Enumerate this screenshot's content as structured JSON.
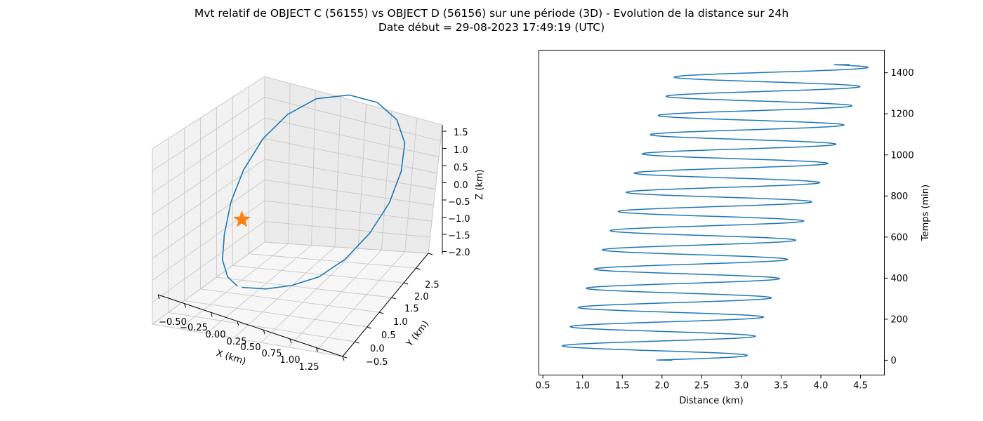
{
  "figure": {
    "title_line1": "Mvt relatif de OBJECT C (56155) vs OBJECT D (56156) sur une période (3D) - Evolution de la distance sur 24h",
    "title_line2": "Date début = 29-08-2023 17:49:19 (UTC)"
  },
  "chart_data": [
    {
      "type": "line",
      "projection": "3d",
      "xlabel": "X (km)",
      "ylabel": "Y (km)",
      "zlabel": "Z (km)",
      "xticks": [
        "−0.50",
        "−0.25",
        "0.00",
        "0.25",
        "0.50",
        "0.75",
        "1.00",
        "1.25"
      ],
      "yticks": [
        "−0.5",
        "0.0",
        "0.5",
        "1.0",
        "1.5",
        "2.0",
        "2.5"
      ],
      "zticks": [
        "1.5",
        "1.0",
        "0.5",
        "0.0",
        "−0.5",
        "−1.0",
        "−1.5",
        "−2.0"
      ],
      "series": [
        {
          "color": "#1f77b4",
          "points": [
            {
              "x": 0.05,
              "y": -0.15,
              "z": -1.76
            },
            {
              "x": 0.3,
              "y": -0.05,
              "z": -1.7
            },
            {
              "x": 0.55,
              "y": 0.1,
              "z": -1.55
            },
            {
              "x": 0.8,
              "y": 0.3,
              "z": -1.3
            },
            {
              "x": 1.0,
              "y": 0.6,
              "z": -0.95
            },
            {
              "x": 1.15,
              "y": 1.0,
              "z": -0.5
            },
            {
              "x": 1.22,
              "y": 1.45,
              "z": -0.05
            },
            {
              "x": 1.2,
              "y": 1.9,
              "z": 0.35
            },
            {
              "x": 1.1,
              "y": 2.3,
              "z": 0.65
            },
            {
              "x": 0.9,
              "y": 2.6,
              "z": 0.82
            },
            {
              "x": 0.6,
              "y": 2.8,
              "z": 0.84
            },
            {
              "x": 0.25,
              "y": 2.85,
              "z": 0.7
            },
            {
              "x": -0.1,
              "y": 2.75,
              "z": 0.4
            },
            {
              "x": -0.35,
              "y": 2.5,
              "z": 0.0
            },
            {
              "x": -0.5,
              "y": 2.1,
              "z": -0.4
            },
            {
              "x": -0.55,
              "y": 1.6,
              "z": -0.8
            },
            {
              "x": -0.52,
              "y": 1.1,
              "z": -1.15
            },
            {
              "x": -0.42,
              "y": 0.6,
              "z": -1.45
            },
            {
              "x": -0.3,
              "y": 0.2,
              "z": -1.65
            },
            {
              "x": -0.15,
              "y": -0.05,
              "z": -1.74
            },
            {
              "x": 0.0,
              "y": -0.15,
              "z": -1.77
            }
          ]
        },
        {
          "marker": "star",
          "color": "#ff7f0e",
          "points": [
            {
              "x": 0.0,
              "y": 0.0,
              "z": 0.0
            }
          ]
        }
      ]
    },
    {
      "type": "line",
      "xlabel": "Distance (km)",
      "ylabel": "Temps (min)",
      "xlim": [
        0.45,
        4.8
      ],
      "ylim": [
        -72,
        1510
      ],
      "xticks": [
        0.5,
        1.0,
        1.5,
        2.0,
        2.5,
        3.0,
        3.5,
        4.0,
        4.5
      ],
      "yticks": [
        0,
        200,
        400,
        600,
        800,
        1000,
        1200,
        1400
      ],
      "xtick_labels": [
        "0.5",
        "1.0",
        "1.5",
        "2.0",
        "2.5",
        "3.0",
        "3.5",
        "4.0",
        "4.5"
      ],
      "ytick_labels": [
        "0",
        "200",
        "400",
        "600",
        "800",
        "1000",
        "1200",
        "1400"
      ],
      "yaxis_position": "right",
      "grid": false,
      "series": [
        {
          "color": "#1f77b4",
          "t_start": 0,
          "t_end": 1440,
          "period_min": 93.5,
          "min_distance_start": 0.67,
          "min_distance_end": 2.22,
          "max_distance_start": 3.05,
          "max_distance_end": 4.61,
          "start_point": {
            "x": 2.13,
            "y": 0
          },
          "end_point": {
            "x": 4.36,
            "y": 1440
          }
        }
      ]
    }
  ]
}
